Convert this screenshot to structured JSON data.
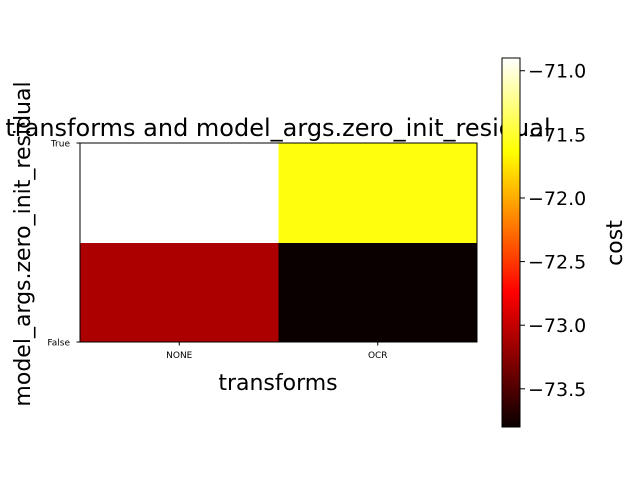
{
  "chart_data": {
    "type": "heatmap",
    "title": "transforms and model_args.zero_init_residual",
    "xlabel": "transforms",
    "ylabel": "model_args.zero_init_residual",
    "x_categories": [
      "NONE",
      "OCR"
    ],
    "y_categories": [
      "False",
      "True"
    ],
    "values": [
      [
        -73.1,
        -73.8
      ],
      [
        -70.9,
        -71.6
      ]
    ],
    "colorbar": {
      "label": "cost",
      "vmin": -73.8,
      "vmax": -70.9,
      "ticks": [
        -71.0,
        -71.5,
        -72.0,
        -72.5,
        -73.0,
        -73.5
      ],
      "tick_labels": [
        "−71.0",
        "−71.5",
        "−72.0",
        "−72.5",
        "−73.0",
        "−73.5"
      ],
      "colormap": "hot"
    },
    "grid": false
  }
}
